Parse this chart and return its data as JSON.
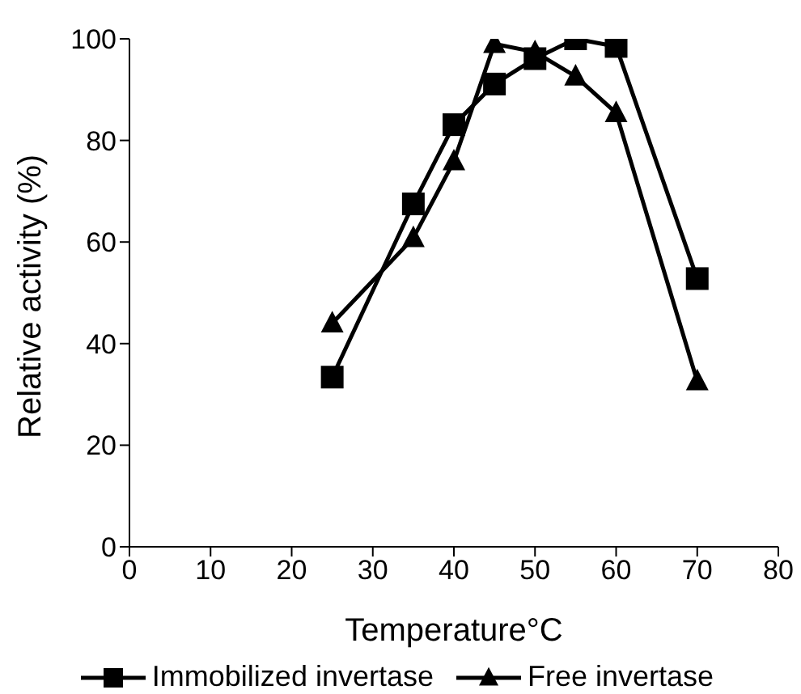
{
  "chart_data": {
    "type": "line",
    "xlabel": "Temperature°C",
    "ylabel": "Relative activity (%)",
    "x": [
      25,
      35,
      40,
      45,
      50,
      55,
      60,
      70
    ],
    "series": [
      {
        "name": "Immobilized invertase",
        "color": "#000000",
        "marker": "square",
        "values": [
          33.4,
          67.5,
          83.1,
          91.1,
          96.1,
          100,
          98.5,
          52.8
        ]
      },
      {
        "name": "Free invertase",
        "color": "#000000",
        "marker": "triangle",
        "values": [
          44,
          60.8,
          75.9,
          99,
          97.4,
          92.6,
          85.4,
          32.6
        ]
      }
    ],
    "xlim": [
      0,
      80
    ],
    "xticks": [
      0,
      10,
      20,
      30,
      40,
      50,
      60,
      70,
      80
    ],
    "ylim": [
      0,
      100
    ],
    "yticks": [
      0,
      20,
      40,
      60,
      80,
      100
    ],
    "grid": false,
    "legend": "bottom",
    "line_style": "solid"
  }
}
